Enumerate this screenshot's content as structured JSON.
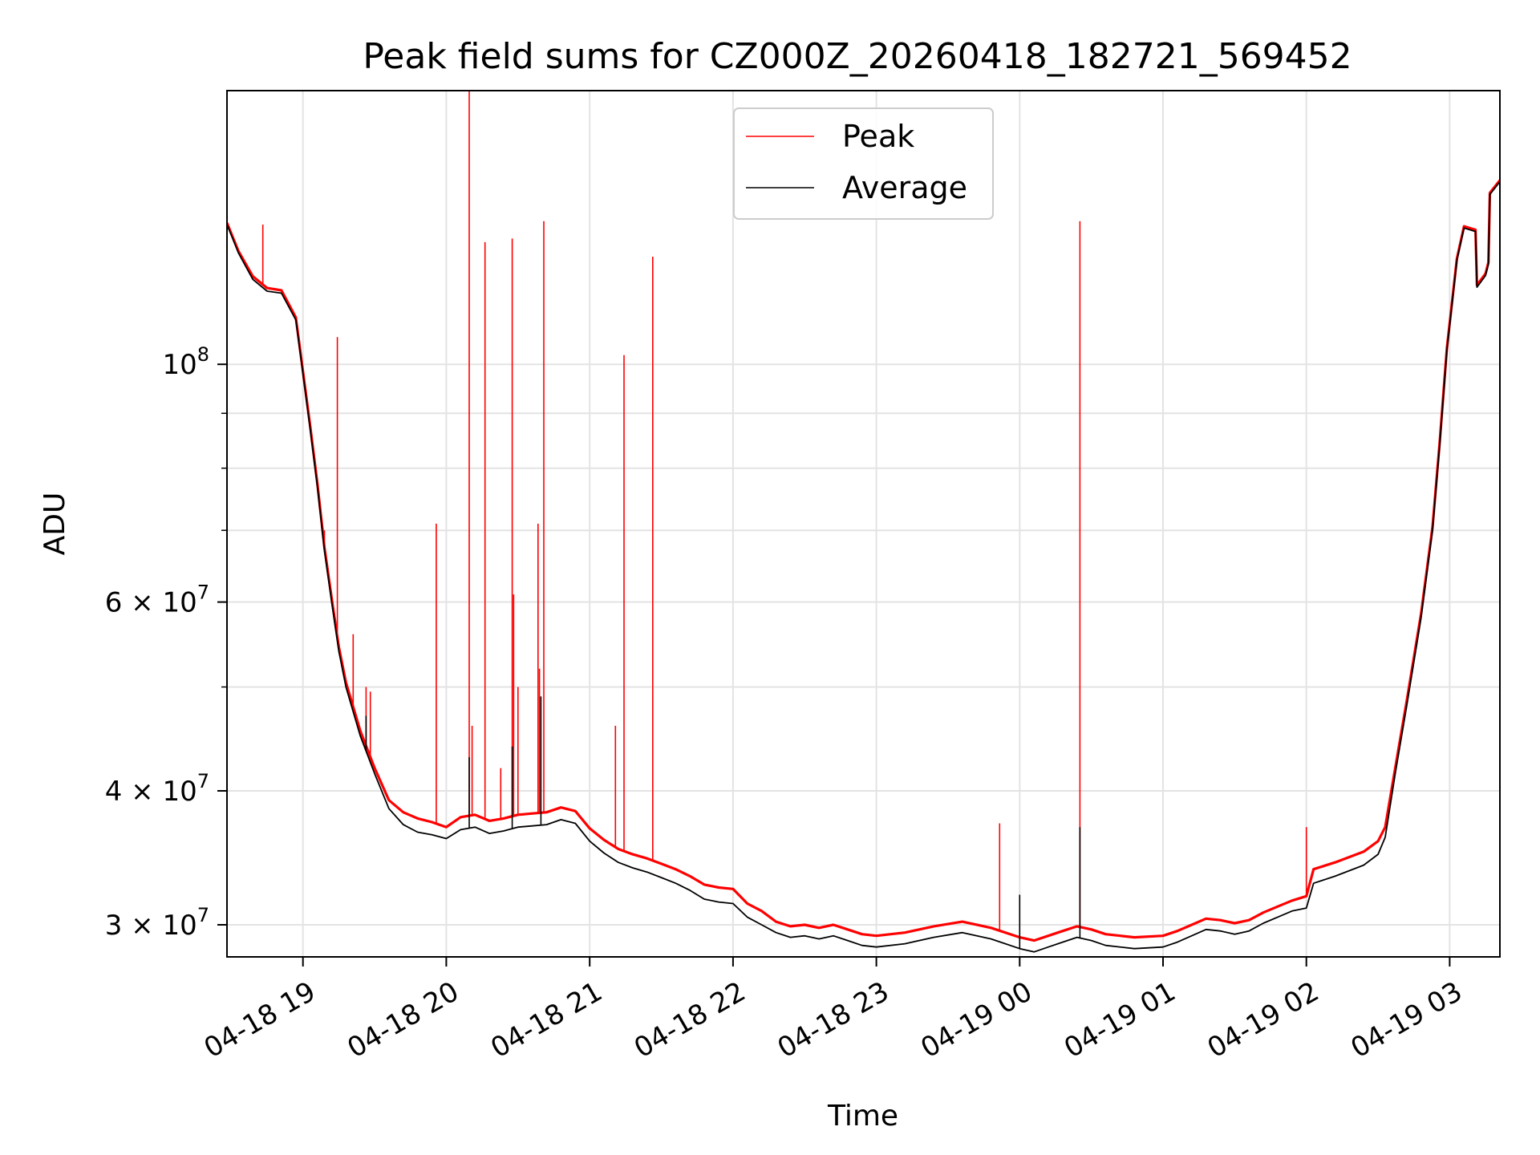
{
  "chart_data": {
    "type": "line",
    "title": "Peak field sums for CZ000Z_20260418_182721_569452",
    "xlabel": "Time",
    "ylabel": "ADU",
    "yscale": "log",
    "grid": true,
    "legend_position": "top-center",
    "xlim_hours": [
      18.47,
      27.35
    ],
    "ylim": [
      28000000,
      180000000
    ],
    "x_ticks": [
      {
        "hour": 19,
        "label": "04-18 19"
      },
      {
        "hour": 20,
        "label": "04-18 20"
      },
      {
        "hour": 21,
        "label": "04-18 21"
      },
      {
        "hour": 22,
        "label": "04-18 22"
      },
      {
        "hour": 23,
        "label": "04-18 23"
      },
      {
        "hour": 24,
        "label": "04-19 00"
      },
      {
        "hour": 25,
        "label": "04-19 01"
      },
      {
        "hour": 26,
        "label": "04-19 02"
      },
      {
        "hour": 27,
        "label": "04-19 03"
      }
    ],
    "y_ticks": [
      {
        "value": 100000000,
        "base": "10",
        "exp": "8"
      },
      {
        "value": 60000000,
        "base": "6 × 10",
        "exp": "7"
      },
      {
        "value": 40000000,
        "base": "4 × 10",
        "exp": "7"
      },
      {
        "value": 30000000,
        "base": "3 × 10",
        "exp": "7"
      }
    ],
    "y_minor_ticks": [
      50000000,
      70000000,
      80000000,
      90000000
    ],
    "series": [
      {
        "name": "Average",
        "color": "#000000",
        "points": [
          [
            18.47,
            135000000
          ],
          [
            18.55,
            127000000
          ],
          [
            18.65,
            120000000
          ],
          [
            18.75,
            117000000
          ],
          [
            18.85,
            116500000
          ],
          [
            18.95,
            110000000
          ],
          [
            19.0,
            98000000
          ],
          [
            19.05,
            87000000
          ],
          [
            19.1,
            77000000
          ],
          [
            19.15,
            67000000
          ],
          [
            19.2,
            60000000
          ],
          [
            19.25,
            54000000
          ],
          [
            19.3,
            50000000
          ],
          [
            19.4,
            45000000
          ],
          [
            19.5,
            41500000
          ],
          [
            19.6,
            38500000
          ],
          [
            19.7,
            37200000
          ],
          [
            19.8,
            36600000
          ],
          [
            19.9,
            36400000
          ],
          [
            20.0,
            36100000
          ],
          [
            20.1,
            36800000
          ],
          [
            20.2,
            37000000
          ],
          [
            20.3,
            36500000
          ],
          [
            20.4,
            36700000
          ],
          [
            20.5,
            37000000
          ],
          [
            20.6,
            37100000
          ],
          [
            20.7,
            37200000
          ],
          [
            20.8,
            37600000
          ],
          [
            20.9,
            37300000
          ],
          [
            21.0,
            35900000
          ],
          [
            21.1,
            35000000
          ],
          [
            21.2,
            34300000
          ],
          [
            21.3,
            33900000
          ],
          [
            21.4,
            33600000
          ],
          [
            21.5,
            33200000
          ],
          [
            21.6,
            32800000
          ],
          [
            21.7,
            32300000
          ],
          [
            21.8,
            31700000
          ],
          [
            21.9,
            31500000
          ],
          [
            22.0,
            31400000
          ],
          [
            22.1,
            30500000
          ],
          [
            22.2,
            30000000
          ],
          [
            22.3,
            29500000
          ],
          [
            22.4,
            29200000
          ],
          [
            22.5,
            29300000
          ],
          [
            22.6,
            29100000
          ],
          [
            22.7,
            29300000
          ],
          [
            22.8,
            29000000
          ],
          [
            22.9,
            28700000
          ],
          [
            23.0,
            28600000
          ],
          [
            23.2,
            28800000
          ],
          [
            23.4,
            29200000
          ],
          [
            23.6,
            29500000
          ],
          [
            23.8,
            29100000
          ],
          [
            24.0,
            28500000
          ],
          [
            24.1,
            28300000
          ],
          [
            24.2,
            28600000
          ],
          [
            24.3,
            28900000
          ],
          [
            24.4,
            29200000
          ],
          [
            24.5,
            29000000
          ],
          [
            24.6,
            28700000
          ],
          [
            24.8,
            28500000
          ],
          [
            25.0,
            28600000
          ],
          [
            25.1,
            28900000
          ],
          [
            25.2,
            29300000
          ],
          [
            25.3,
            29700000
          ],
          [
            25.4,
            29600000
          ],
          [
            25.5,
            29400000
          ],
          [
            25.6,
            29600000
          ],
          [
            25.7,
            30100000
          ],
          [
            25.8,
            30500000
          ],
          [
            25.9,
            30900000
          ],
          [
            26.0,
            31100000
          ],
          [
            26.05,
            32800000
          ],
          [
            26.2,
            33300000
          ],
          [
            26.4,
            34100000
          ],
          [
            26.5,
            34900000
          ],
          [
            26.55,
            36200000
          ],
          [
            26.62,
            41500000
          ],
          [
            26.7,
            48000000
          ],
          [
            26.8,
            58000000
          ],
          [
            26.88,
            70000000
          ],
          [
            26.93,
            84000000
          ],
          [
            26.98,
            103000000
          ],
          [
            27.05,
            125000000
          ],
          [
            27.1,
            134000000
          ],
          [
            27.18,
            133000000
          ],
          [
            27.19,
            118000000
          ],
          [
            27.25,
            121000000
          ],
          [
            27.27,
            124000000
          ],
          [
            27.28,
            144000000
          ],
          [
            27.35,
            148000000
          ]
        ],
        "spikes": [
          [
            19.44,
            47000000
          ],
          [
            20.16,
            43000000
          ],
          [
            20.46,
            44000000
          ],
          [
            20.66,
            49000000
          ],
          [
            24.0,
            32000000
          ],
          [
            24.42,
            37000000
          ]
        ]
      },
      {
        "name": "Peak",
        "color": "#ff0000",
        "points": [
          [
            18.47,
            135500000
          ],
          [
            18.55,
            127500000
          ],
          [
            18.65,
            120800000
          ],
          [
            18.75,
            117800000
          ],
          [
            18.85,
            117200000
          ],
          [
            18.95,
            110600000
          ],
          [
            19.0,
            98500000
          ],
          [
            19.05,
            87600000
          ],
          [
            19.1,
            77500000
          ],
          [
            19.15,
            67500000
          ],
          [
            19.2,
            60500000
          ],
          [
            19.25,
            54500000
          ],
          [
            19.3,
            50500000
          ],
          [
            19.4,
            45500000
          ],
          [
            19.5,
            42000000
          ],
          [
            19.6,
            39200000
          ],
          [
            19.7,
            38200000
          ],
          [
            19.8,
            37700000
          ],
          [
            19.9,
            37400000
          ],
          [
            20.0,
            37000000
          ],
          [
            20.1,
            37800000
          ],
          [
            20.2,
            38000000
          ],
          [
            20.3,
            37500000
          ],
          [
            20.4,
            37700000
          ],
          [
            20.5,
            38000000
          ],
          [
            20.6,
            38100000
          ],
          [
            20.7,
            38200000
          ],
          [
            20.8,
            38600000
          ],
          [
            20.9,
            38300000
          ],
          [
            21.0,
            36900000
          ],
          [
            21.1,
            36000000
          ],
          [
            21.2,
            35300000
          ],
          [
            21.3,
            34900000
          ],
          [
            21.4,
            34600000
          ],
          [
            21.5,
            34200000
          ],
          [
            21.6,
            33800000
          ],
          [
            21.7,
            33300000
          ],
          [
            21.8,
            32700000
          ],
          [
            21.9,
            32500000
          ],
          [
            22.0,
            32400000
          ],
          [
            22.1,
            31400000
          ],
          [
            22.2,
            30900000
          ],
          [
            22.3,
            30200000
          ],
          [
            22.4,
            29900000
          ],
          [
            22.5,
            30000000
          ],
          [
            22.6,
            29800000
          ],
          [
            22.7,
            30000000
          ],
          [
            22.8,
            29700000
          ],
          [
            22.9,
            29400000
          ],
          [
            23.0,
            29300000
          ],
          [
            23.2,
            29500000
          ],
          [
            23.4,
            29900000
          ],
          [
            23.6,
            30200000
          ],
          [
            23.8,
            29800000
          ],
          [
            24.0,
            29200000
          ],
          [
            24.1,
            29000000
          ],
          [
            24.2,
            29300000
          ],
          [
            24.3,
            29600000
          ],
          [
            24.4,
            29900000
          ],
          [
            24.5,
            29700000
          ],
          [
            24.6,
            29400000
          ],
          [
            24.8,
            29200000
          ],
          [
            25.0,
            29300000
          ],
          [
            25.1,
            29600000
          ],
          [
            25.2,
            30000000
          ],
          [
            25.3,
            30400000
          ],
          [
            25.4,
            30300000
          ],
          [
            25.5,
            30100000
          ],
          [
            25.6,
            30300000
          ],
          [
            25.7,
            30800000
          ],
          [
            25.8,
            31200000
          ],
          [
            25.9,
            31600000
          ],
          [
            26.0,
            31900000
          ],
          [
            26.05,
            33800000
          ],
          [
            26.2,
            34300000
          ],
          [
            26.4,
            35100000
          ],
          [
            26.5,
            35900000
          ],
          [
            26.55,
            37000000
          ],
          [
            26.62,
            42000000
          ],
          [
            26.7,
            48500000
          ],
          [
            26.8,
            58500000
          ],
          [
            26.88,
            70500000
          ],
          [
            26.93,
            84500000
          ],
          [
            26.98,
            103500000
          ],
          [
            27.05,
            125500000
          ],
          [
            27.1,
            134500000
          ],
          [
            27.18,
            133500000
          ],
          [
            27.19,
            118500000
          ],
          [
            27.25,
            121500000
          ],
          [
            27.27,
            124500000
          ],
          [
            27.28,
            144500000
          ],
          [
            27.35,
            148500000
          ]
        ],
        "spikes": [
          [
            18.72,
            135000000
          ],
          [
            19.24,
            106000000
          ],
          [
            19.15,
            70000000
          ],
          [
            19.35,
            56000000
          ],
          [
            19.44,
            50000000
          ],
          [
            19.47,
            49500000
          ],
          [
            19.93,
            71000000
          ],
          [
            20.16,
            180000000
          ],
          [
            20.18,
            46000000
          ],
          [
            20.27,
            130000000
          ],
          [
            20.38,
            42000000
          ],
          [
            20.46,
            131000000
          ],
          [
            20.47,
            61000000
          ],
          [
            20.5,
            50000000
          ],
          [
            20.64,
            71000000
          ],
          [
            20.68,
            136000000
          ],
          [
            20.65,
            52000000
          ],
          [
            21.18,
            46000000
          ],
          [
            21.24,
            102000000
          ],
          [
            21.44,
            126000000
          ],
          [
            23.86,
            37300000
          ],
          [
            24.42,
            136000000
          ],
          [
            26.0,
            37000000
          ]
        ]
      }
    ]
  }
}
